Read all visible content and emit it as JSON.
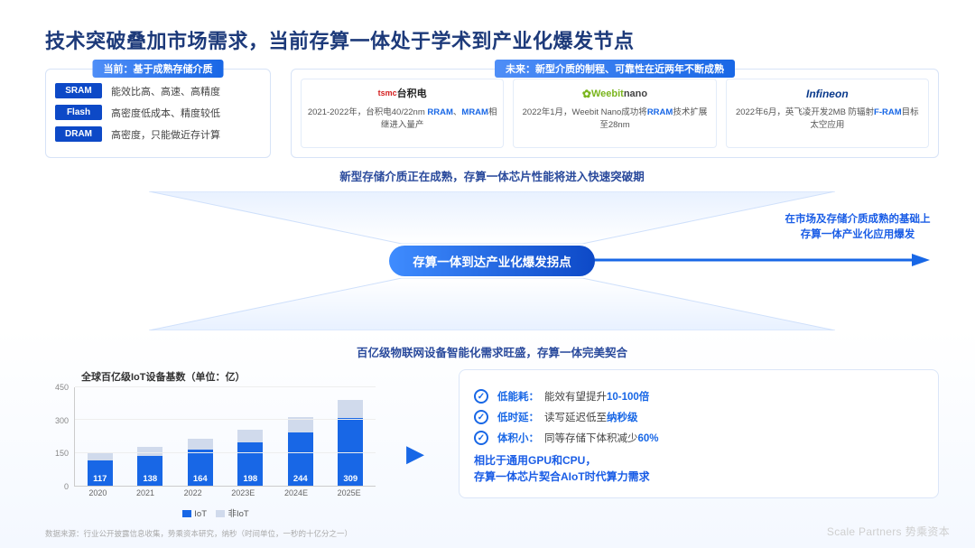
{
  "title": "技术突破叠加市场需求，当前存算一体处于学术到产业化爆发节点",
  "current_box": {
    "tab": "当前：基于成熟存储介质",
    "rows": [
      {
        "chip": "SRAM",
        "desc": "能效比高、高速、高精度"
      },
      {
        "chip": "Flash",
        "desc": "高密度低成本、精度较低"
      },
      {
        "chip": "DRAM",
        "desc": "高密度，只能做近存计算"
      }
    ]
  },
  "future_box": {
    "tab": "未来：新型介质的制程、可靠性在近两年不断成熟",
    "vendors": [
      {
        "logo_html": "<span style='color:#d31f1f;font-size:9px;font-weight:700'>tsmc</span> <span style='color:#222;font-size:11px;font-weight:700'>台积电</span>",
        "desc": "2021-2022年，台积电40/22nm <span class='hl'>RRAM</span>、<span class='hl'>MRAM</span>相继进入量产"
      },
      {
        "logo_html": "<span style='color:#7ab51d;font-size:12px'>✿</span><span style='color:#7ab51d;font-weight:700;font-size:11px'>Weebit</span><span style='color:#444;font-size:11px'>nano</span>",
        "desc": "2022年1月，Weebit Nano成功将<span class='hl'>RRAM</span>技术扩展至28nm"
      },
      {
        "logo_html": "<span style='color:#0a3a8c;font-style:italic;font-weight:700;font-size:12px'>Infineon</span>",
        "desc": "2022年6月，英飞凌开发2MB 防辐射<span class='hl'>F-RAM</span>目标太空应用"
      }
    ]
  },
  "mid": {
    "line_top": "新型存储介质正在成熟，存算一体芯片性能将进入快速突破期",
    "pill": "存算一体到达产业化爆发拐点",
    "line_bottom": "百亿级物联网设备智能化需求旺盛，存算一体完美契合",
    "side1": "在市场及存储介质成熟的基础上",
    "side2": "存算一体产业化应用爆发"
  },
  "chart": {
    "title": "全球百亿级IoT设备基数（单位：亿）",
    "y_max": 450,
    "y_ticks": [
      0,
      150,
      300,
      450
    ],
    "categories": [
      "2020",
      "2021",
      "2022",
      "2023E",
      "2024E",
      "2025E"
    ],
    "iot": [
      117,
      138,
      164,
      198,
      244,
      309
    ],
    "noniot": [
      33,
      40,
      50,
      58,
      70,
      85
    ],
    "bar_color": "#1867e6",
    "bar_color2": "#d0daec",
    "legend_iot": "IoT",
    "legend_non": "非IoT"
  },
  "features": {
    "rows": [
      {
        "k": "低能耗：",
        "plain": "能效有望提升",
        "hl": "10-100倍"
      },
      {
        "k": "低时延：",
        "plain": "读写延迟低至",
        "hl": "纳秒级"
      },
      {
        "k": "体积小：",
        "plain": "同等存储下体积减少",
        "hl": "60%"
      }
    ],
    "sum1": "相比于通用GPU和CPU，",
    "sum2": "存算一体芯片契合AIoT时代算力需求"
  },
  "footer": "数据来源：行业公开披露信息收集，势乘资本研究，纳秒（时间单位，一秒的十亿分之一）",
  "brand_en": "Scale Partners",
  "brand_cn": "势乘资本",
  "colors": {
    "accent": "#1867e6"
  }
}
